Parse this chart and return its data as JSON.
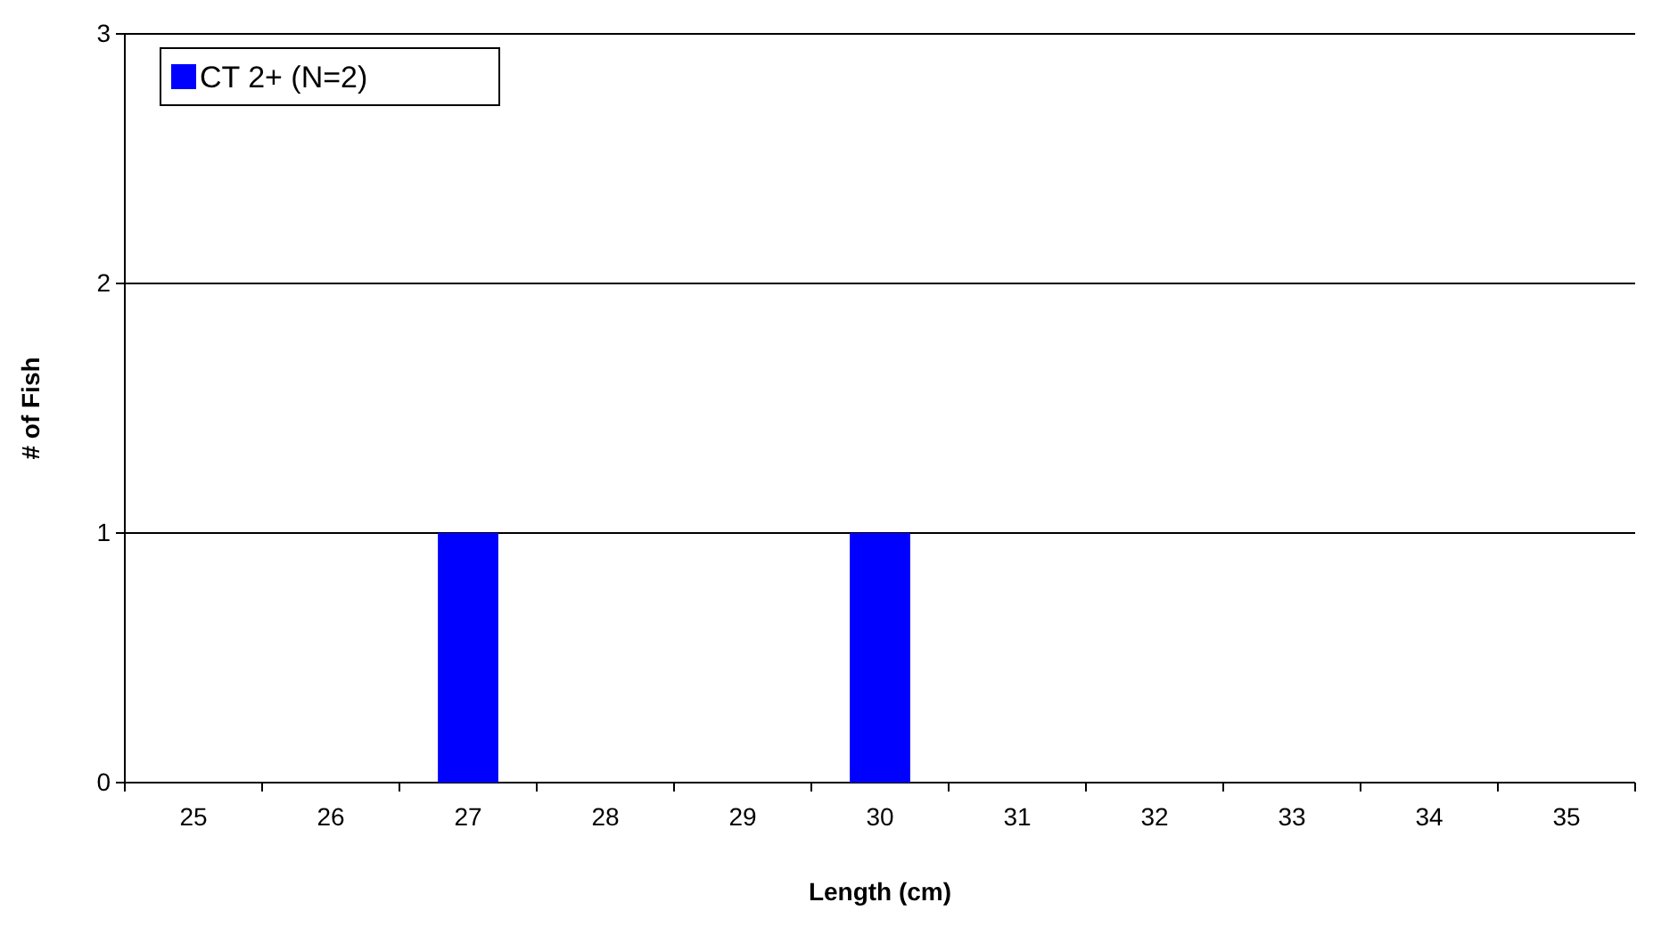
{
  "chart_data": {
    "type": "bar",
    "xlabel": "Length (cm)",
    "ylabel": "# of Fish",
    "categories": [
      "25",
      "26",
      "27",
      "28",
      "29",
      "30",
      "31",
      "32",
      "33",
      "34",
      "35"
    ],
    "series": [
      {
        "name": "CT 2+ (N=2)",
        "color": "#0000ff",
        "values": [
          0,
          0,
          1,
          0,
          0,
          1,
          0,
          0,
          0,
          0,
          0
        ]
      }
    ],
    "ylim": [
      0,
      3
    ],
    "yticks": [
      0,
      1,
      2,
      3
    ],
    "grid": "y",
    "legend": "top left"
  }
}
